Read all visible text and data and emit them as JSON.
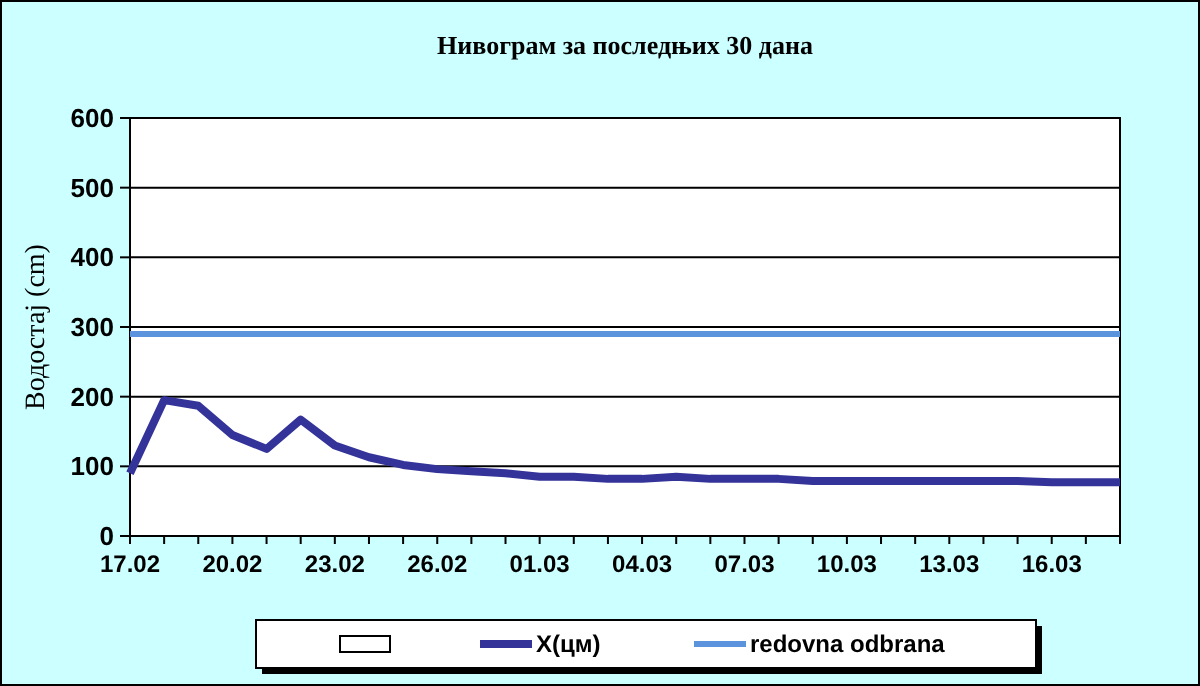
{
  "chart_data": {
    "type": "line",
    "title": "Нивограм за последњих 30 дана",
    "ylabel": "Водостај (cm)",
    "categories": [
      "17.02",
      null,
      null,
      "20.02",
      null,
      null,
      "23.02",
      null,
      null,
      "26.02",
      null,
      null,
      "01.03",
      null,
      null,
      "04.03",
      null,
      null,
      "07.03",
      null,
      null,
      "10.03",
      null,
      null,
      "13.03",
      null,
      null,
      "16.03",
      null,
      null
    ],
    "series": [
      {
        "name": "X(цм)",
        "color": "#333399",
        "values": [
          90,
          195,
          187,
          145,
          125,
          167,
          130,
          113,
          102,
          96,
          93,
          90,
          85,
          85,
          82,
          82,
          85,
          82,
          82,
          82,
          79,
          79,
          79,
          79,
          79,
          79,
          79,
          77,
          77,
          77
        ]
      }
    ],
    "ref_lines": [
      {
        "axis": "y",
        "value": 290,
        "label": "redovna odbrana",
        "color": "#5b94dc"
      }
    ],
    "ylim": [
      0,
      600
    ],
    "yticks": [
      0,
      100,
      200,
      300,
      400,
      500,
      600
    ],
    "grid": "y",
    "legend": "bottom",
    "marker": "none",
    "line_style": "solid"
  }
}
